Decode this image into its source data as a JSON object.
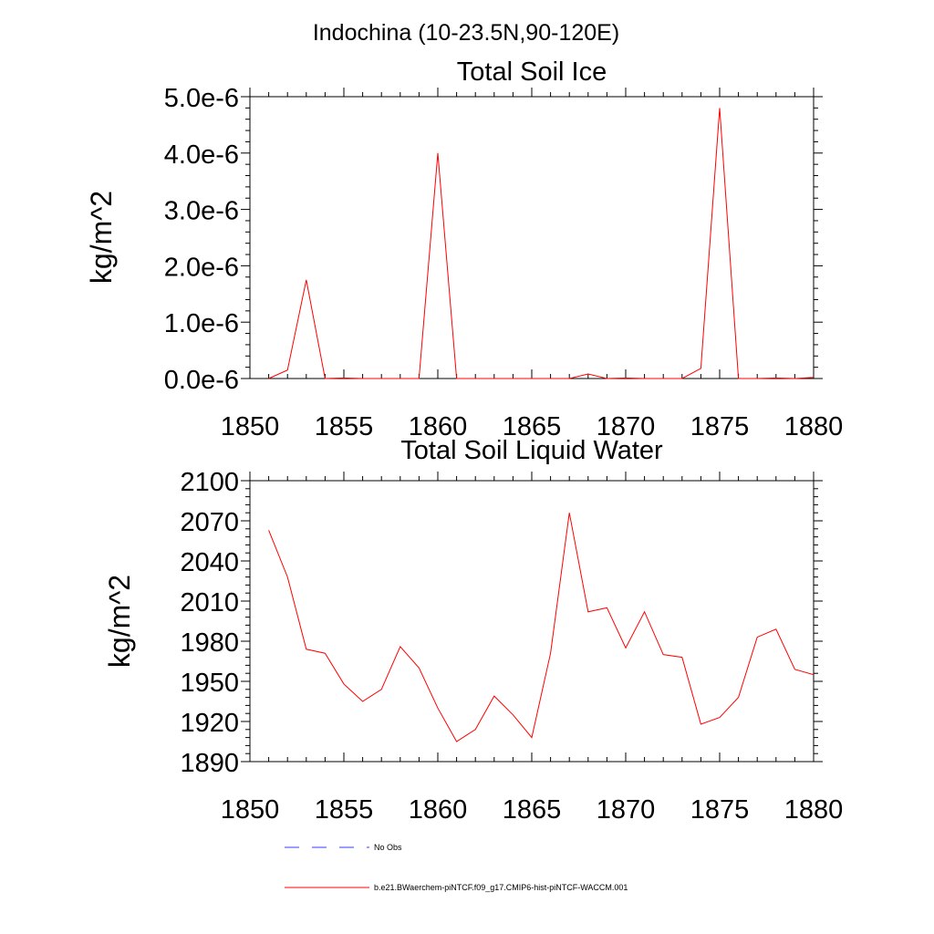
{
  "figure": {
    "title": "Indochina (10-23.5N,90-120E)"
  },
  "chart_data": [
    {
      "type": "line",
      "title": "Total Soil Ice",
      "xlabel": "",
      "ylabel": "kg/m^2",
      "xlim": [
        1850,
        1880
      ],
      "ylim": [
        0,
        5e-06
      ],
      "x_ticks": [
        1850,
        1855,
        1860,
        1865,
        1870,
        1875,
        1880
      ],
      "x_tick_labels": [
        "1850",
        "1855",
        "1860",
        "1865",
        "1870",
        "1875",
        "1880"
      ],
      "y_ticks": [
        0,
        1e-06,
        2e-06,
        3e-06,
        4e-06,
        5e-06
      ],
      "y_tick_labels": [
        "0.0e-6",
        "1.0e-6",
        "2.0e-6",
        "3.0e-6",
        "4.0e-6",
        "5.0e-6"
      ],
      "grid": false,
      "x": [
        1851,
        1852,
        1853,
        1854,
        1855,
        1856,
        1857,
        1858,
        1859,
        1860,
        1861,
        1862,
        1863,
        1864,
        1865,
        1866,
        1867,
        1868,
        1869,
        1870,
        1871,
        1872,
        1873,
        1874,
        1875,
        1876,
        1877,
        1878,
        1879,
        1880
      ],
      "series": [
        {
          "name": "b.e21.BWaerchem-piNTCF.f09_g17.CMIP6-hist-piNTCF-WACCM.001",
          "color": "#ff0000",
          "values": [
            0,
            1.5e-07,
            1.75e-06,
            0,
            1e-08,
            0,
            0,
            0,
            0,
            4e-06,
            0,
            0,
            0,
            0,
            0,
            0,
            0,
            8e-08,
            0,
            1e-08,
            0,
            0,
            0,
            1.8e-07,
            4.8e-06,
            0,
            0,
            1e-08,
            0,
            2e-08
          ]
        }
      ]
    },
    {
      "type": "line",
      "title": "Total Soil Liquid Water",
      "xlabel": "",
      "ylabel": "kg/m^2",
      "xlim": [
        1850,
        1880
      ],
      "ylim": [
        1890,
        2100
      ],
      "x_ticks": [
        1850,
        1855,
        1860,
        1865,
        1870,
        1875,
        1880
      ],
      "x_tick_labels": [
        "1850",
        "1855",
        "1860",
        "1865",
        "1870",
        "1875",
        "1880"
      ],
      "y_ticks": [
        1890,
        1920,
        1950,
        1980,
        2010,
        2040,
        2070,
        2100
      ],
      "y_tick_labels": [
        "1890",
        "1920",
        "1950",
        "1980",
        "2010",
        "2040",
        "2070",
        "2100"
      ],
      "grid": false,
      "x": [
        1851,
        1852,
        1853,
        1854,
        1855,
        1856,
        1857,
        1858,
        1859,
        1860,
        1861,
        1862,
        1863,
        1864,
        1865,
        1866,
        1867,
        1868,
        1869,
        1870,
        1871,
        1872,
        1873,
        1874,
        1875,
        1876,
        1877,
        1878,
        1879,
        1880
      ],
      "series": [
        {
          "name": "b.e21.BWaerchem-piNTCF.f09_g17.CMIP6-hist-piNTCF-WACCM.001",
          "color": "#ff0000",
          "values": [
            2063,
            2028,
            1974,
            1971,
            1948,
            1935,
            1944,
            1976,
            1960,
            1930,
            1905,
            1914,
            1939,
            1925,
            1908,
            1971,
            2076,
            2002,
            2005,
            1975,
            2002,
            1970,
            1968,
            1918,
            1923,
            1938,
            1983,
            1989,
            1959,
            1955
          ]
        }
      ]
    }
  ],
  "legend": {
    "placement": "bottom",
    "items": [
      {
        "label": "No Obs",
        "color": "#0000ff",
        "style": "dashed"
      },
      {
        "label": "b.e21.BWaerchem-piNTCF.f09_g17.CMIP6-hist-piNTCF-WACCM.001",
        "color": "#ff0000",
        "style": "solid"
      }
    ]
  }
}
